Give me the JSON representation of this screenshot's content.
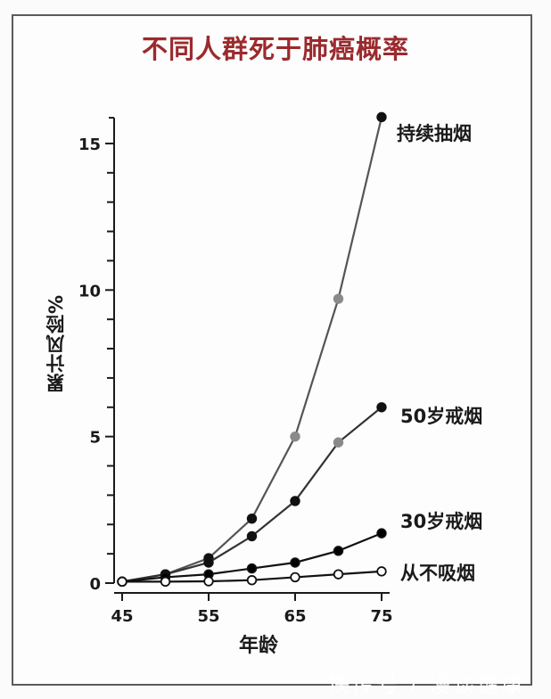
{
  "chart_data": {
    "type": "line",
    "title": "不同人群死于肺癌概率",
    "xlabel": "年龄",
    "ylabel": "累计风险%",
    "x": [
      45,
      50,
      55,
      60,
      65,
      70,
      75
    ],
    "xticks": [
      45,
      55,
      65,
      75
    ],
    "yticks_major": [
      0,
      5,
      10,
      15
    ],
    "yticks_minor_step": 1,
    "xlim": [
      44,
      76
    ],
    "ylim": [
      0,
      16
    ],
    "grid": false,
    "legend_position": "inline-right",
    "series": [
      {
        "name": "持续抽烟",
        "values": [
          0.05,
          0.3,
          0.85,
          2.2,
          5.0,
          9.7,
          15.9
        ],
        "marker": "filled",
        "line_color": "#555555",
        "marker_color": "#888888",
        "end_marker_color": "#000000"
      },
      {
        "name": "50岁戒烟",
        "values": [
          0.05,
          0.3,
          0.7,
          1.6,
          2.8,
          4.8,
          6.0
        ],
        "marker": "filled",
        "line_color": "#333333",
        "marker_color": "#000000",
        "mixed_markers": true
      },
      {
        "name": "30岁戒烟",
        "values": [
          0.05,
          0.2,
          0.3,
          0.5,
          0.7,
          1.1,
          1.7
        ],
        "marker": "filled",
        "line_color": "#111111",
        "marker_color": "#000000"
      },
      {
        "name": "从不吸烟",
        "values": [
          0.05,
          0.05,
          0.06,
          0.1,
          0.2,
          0.3,
          0.4
        ],
        "marker": "hollow",
        "line_color": "#111111",
        "marker_color": "#ffffff"
      }
    ],
    "colors": {
      "title": "#9b2a2e",
      "axis": "#1a1a1a",
      "frame": "#5a5a5a"
    }
  },
  "labels": {
    "title": "不同人群死于肺癌概率",
    "ylabel": "累计风险%",
    "xlabel": "年龄",
    "series": [
      "持续抽烟",
      "50岁戒烟",
      "30岁戒烟",
      "从不吸烟"
    ]
  },
  "watermark": "快传号 / 漫谈健康"
}
